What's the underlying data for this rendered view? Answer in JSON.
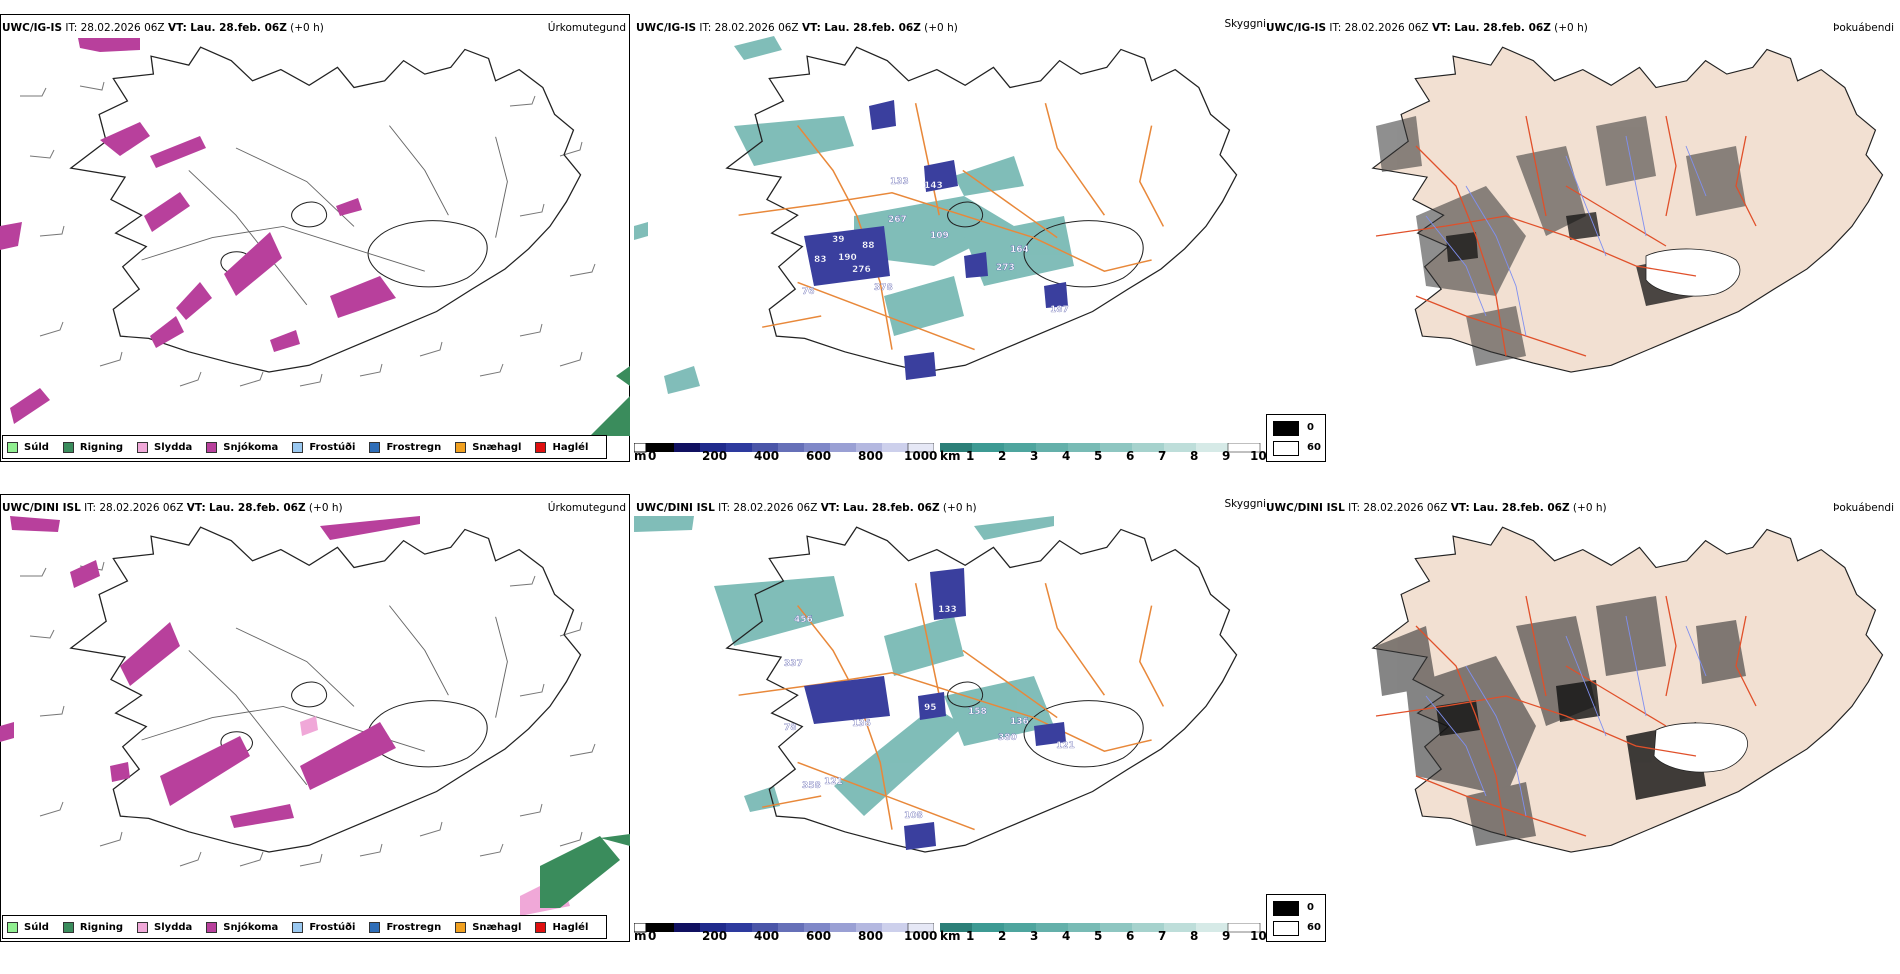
{
  "panels": [
    {
      "model": "UWC/IG-IS",
      "it_label": "IT:",
      "it_value": "28.02.2026 06Z",
      "vt_label": "VT:",
      "vt_value": "Lau. 28.feb. 06Z",
      "offset": "(+0 h)",
      "precip_title": "Úrkomutegund",
      "vis_title": "Skyggni",
      "fog_title": "Þokuábendi",
      "ceiling_labels": [
        "83",
        "190",
        "276",
        "378",
        "267",
        "109",
        "164",
        "273",
        "143",
        "187",
        "133",
        "88",
        "39",
        "76"
      ]
    },
    {
      "model": "UWC/DINI ISL",
      "it_label": "IT:",
      "it_value": "28.02.2026 06Z",
      "vt_label": "VT:",
      "vt_value": "Lau. 28.feb. 06Z",
      "offset": "(+0 h)",
      "precip_title": "Úrkomutegund",
      "vis_title": "Skyggni",
      "fog_title": "Þokuábendi",
      "ceiling_labels": [
        "456",
        "337",
        "95",
        "158",
        "136",
        "380",
        "136",
        "121",
        "358",
        "121",
        "133",
        "108",
        "78"
      ]
    }
  ],
  "precip_legend": [
    {
      "label": "Súld",
      "color": "#90ee90"
    },
    {
      "label": "Rigning",
      "color": "#3a8c5c"
    },
    {
      "label": "Slydda",
      "color": "#f0a8d8"
    },
    {
      "label": "Snjókoma",
      "color": "#b8409c"
    },
    {
      "label": "Frostúði",
      "color": "#9ac8f0"
    },
    {
      "label": "Frostregn",
      "color": "#2f6eb8"
    },
    {
      "label": "Snæhagl",
      "color": "#f0a020"
    },
    {
      "label": "Haglél",
      "color": "#e01010"
    }
  ],
  "ceiling_scale": {
    "unit": "m",
    "ticks": [
      "0",
      "200",
      "400",
      "600",
      "800",
      "1000"
    ]
  },
  "visibility_scale": {
    "unit": "km",
    "ticks": [
      "1",
      "2",
      "3",
      "4",
      "5",
      "6",
      "7",
      "8",
      "9",
      "10"
    ]
  },
  "fog_scale": {
    "ticks": [
      "0",
      "60"
    ]
  },
  "colors": {
    "snow": "#b8409c",
    "rain": "#3a8c5c",
    "low_cloud": "#3a3f9e",
    "vis_teal": "#3d9a93",
    "roads": "#e8883a",
    "land_fog": "#f2e0d2",
    "roads_red": "#e0502a",
    "rivers": "#7f8ff0"
  }
}
